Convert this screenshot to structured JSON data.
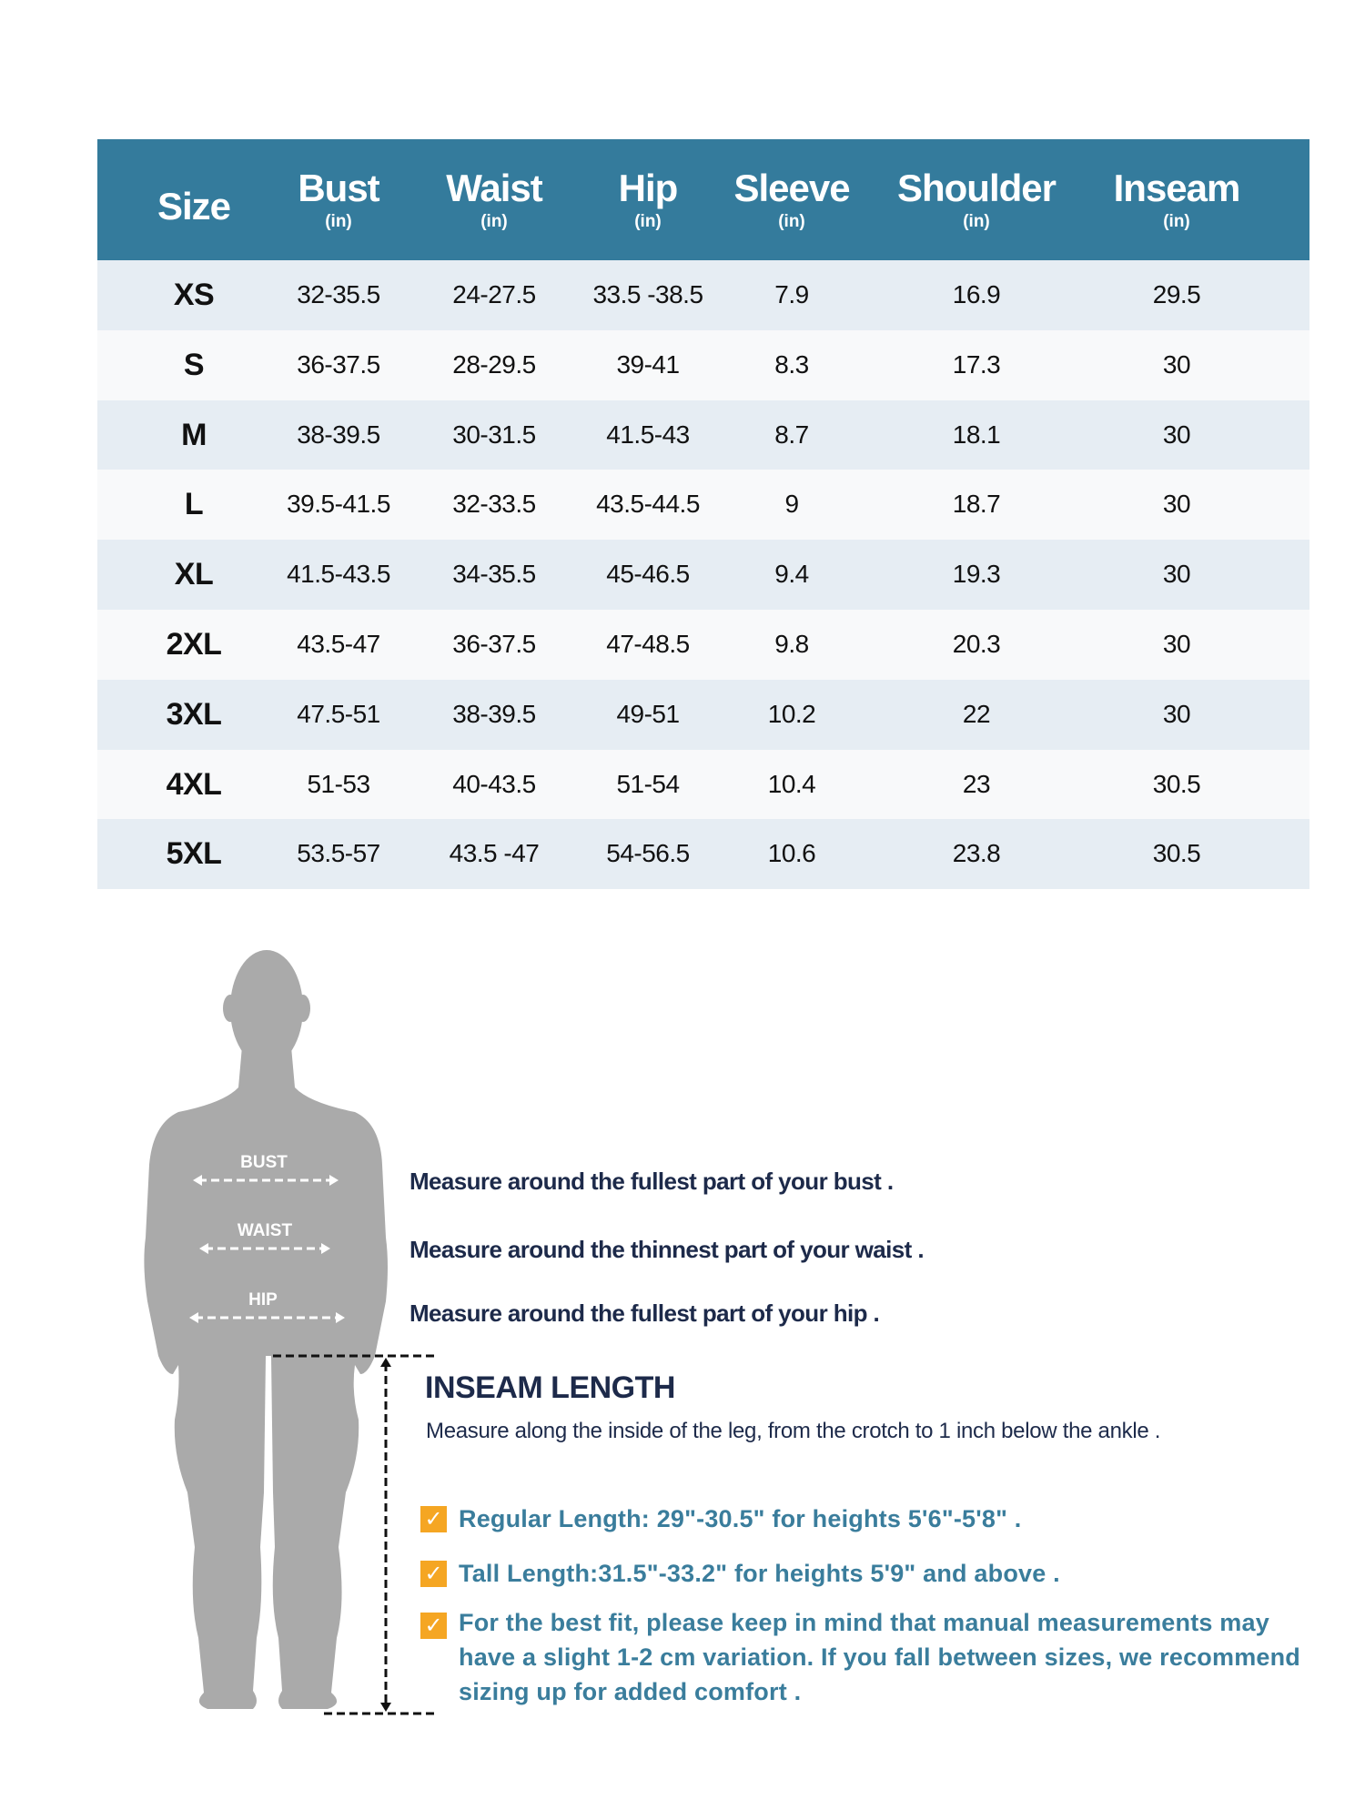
{
  "table": {
    "headers": [
      {
        "name": "Size",
        "unit": ""
      },
      {
        "name": "Bust",
        "unit": "(in)"
      },
      {
        "name": "Waist",
        "unit": "(in)"
      },
      {
        "name": "Hip",
        "unit": "(in)"
      },
      {
        "name": "Sleeve",
        "unit": "(in)"
      },
      {
        "name": "Shoulder",
        "unit": "(in)"
      },
      {
        "name": "Inseam",
        "unit": "(in)"
      }
    ],
    "rows": [
      [
        "XS",
        "32-35.5",
        "24-27.5",
        "33.5 -38.5",
        "7.9",
        "16.9",
        "29.5"
      ],
      [
        "S",
        "36-37.5",
        "28-29.5",
        "39-41",
        "8.3",
        "17.3",
        "30"
      ],
      [
        "M",
        "38-39.5",
        "30-31.5",
        "41.5-43",
        "8.7",
        "18.1",
        "30"
      ],
      [
        "L",
        "39.5-41.5",
        "32-33.5",
        "43.5-44.5",
        "9",
        "18.7",
        "30"
      ],
      [
        "XL",
        "41.5-43.5",
        "34-35.5",
        "45-46.5",
        "9.4",
        "19.3",
        "30"
      ],
      [
        "2XL",
        "43.5-47",
        "36-37.5",
        "47-48.5",
        "9.8",
        "20.3",
        "30"
      ],
      [
        "3XL",
        "47.5-51",
        "38-39.5",
        "49-51",
        "10.2",
        "22",
        "30"
      ],
      [
        "4XL",
        "51-53",
        "40-43.5",
        "51-54",
        "10.4",
        "23",
        "30.5"
      ],
      [
        "5XL",
        "53.5-57",
        "43.5 -47",
        "54-56.5",
        "10.6",
        "23.8",
        "30.5"
      ]
    ]
  },
  "figure": {
    "bust_label": "BUST",
    "waist_label": "WAIST",
    "hip_label": "HIP"
  },
  "measures": {
    "bust": "Measure around the fullest part of your bust .",
    "waist": "Measure around the thinnest part of your waist .",
    "hip": "Measure around the fullest part of your hip ."
  },
  "inseam": {
    "title": "INSEAM LENGTH",
    "description": "Measure along the inside of the leg, from the crotch to 1 inch below the ankle ."
  },
  "notes": [
    "Regular Length: 29\"-30.5\" for heights 5'6\"-5'8\" .",
    "Tall Length:31.5\"-33.2\" for heights 5'9\" and above .",
    "For the best fit, please keep in mind that manual measurements may have a slight 1-2 cm variation. If you fall between sizes, we recommend sizing up for added comfort ."
  ],
  "colors": {
    "header": "#347b9c",
    "row_alt": "#e6edf3",
    "text_dark": "#1d2a4a",
    "note": "#3a7d9c",
    "check": "#f5a623",
    "silhouette": "#aaaaaa"
  }
}
